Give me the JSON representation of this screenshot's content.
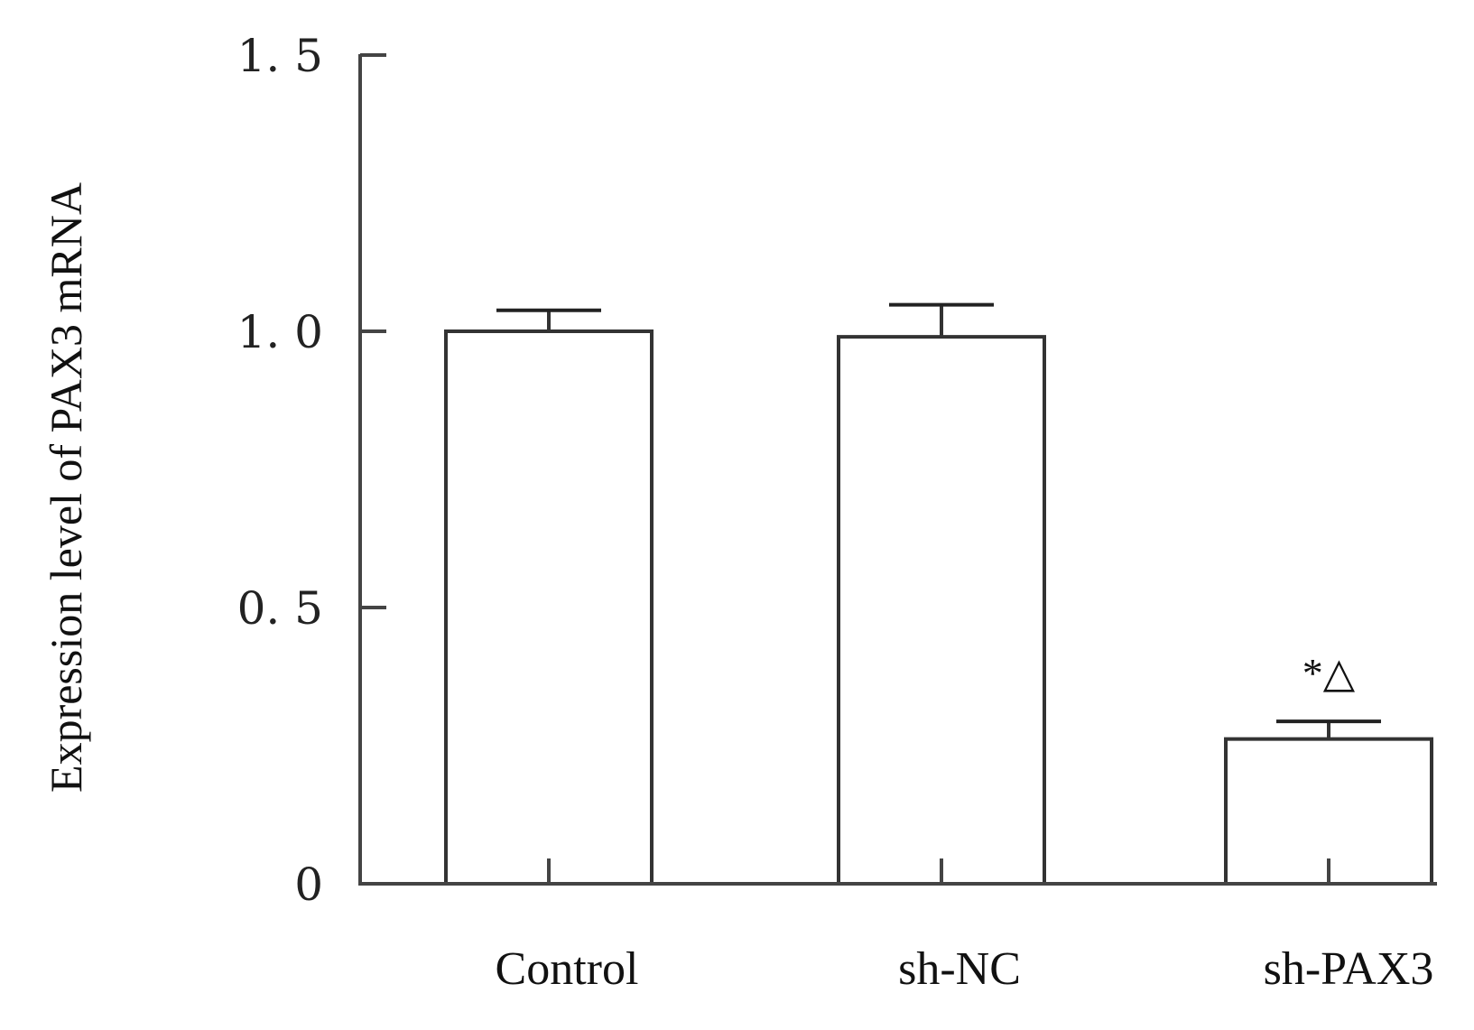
{
  "chart_data": {
    "type": "bar",
    "title": "",
    "xlabel": "",
    "ylabel": "Expression level of PAX3 mRNA",
    "ylim": [
      0,
      1.5
    ],
    "yticks": [
      0,
      0.5,
      1.0,
      1.5
    ],
    "ytick_labels": [
      "0",
      "0. 5",
      "1. 0",
      "1. 5"
    ],
    "categories": [
      "Control",
      "sh-NC",
      "sh-PAX3"
    ],
    "values": [
      1.0,
      0.99,
      0.262
    ],
    "error_upper": [
      0.038,
      0.058,
      0.032
    ],
    "annotations": [
      "",
      "",
      "*△"
    ],
    "bar_fill": "#ffffff",
    "bar_stroke": "#333333",
    "grid": false,
    "legend": "none"
  }
}
